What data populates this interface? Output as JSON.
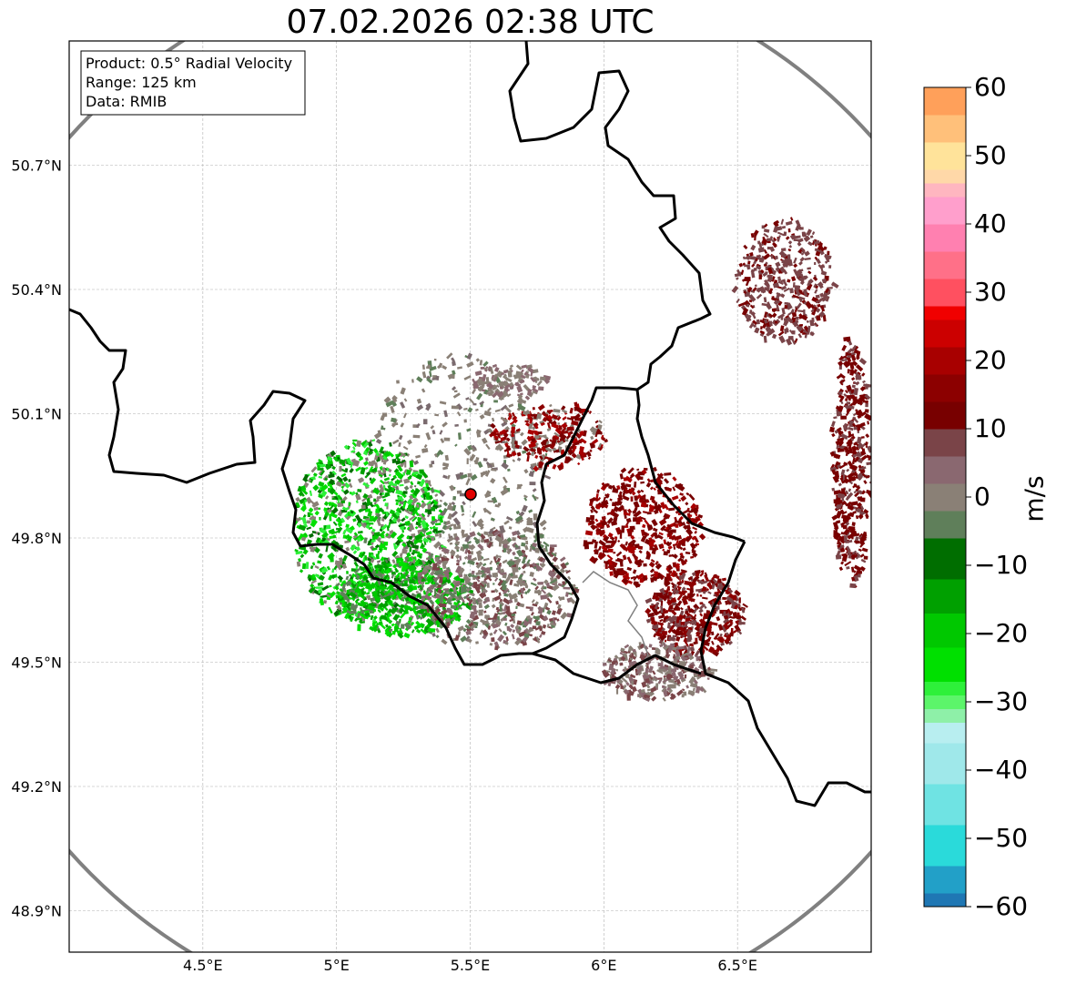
{
  "title": "07.02.2026 02:38 UTC",
  "info_box": {
    "product": "Product: 0.5° Radial Velocity",
    "range": "Range: 125 km",
    "data": "Data: RMIB"
  },
  "map_extent": {
    "lon": [
      4.0,
      7.0
    ],
    "lat": [
      48.8,
      51.0
    ]
  },
  "radar_site": {
    "lon": 5.505,
    "lat": 49.914
  },
  "lat_ticks": [
    {
      "value": 48.9,
      "label": "48.9°N"
    },
    {
      "value": 49.2,
      "label": "49.2°N"
    },
    {
      "value": 49.5,
      "label": "49.5°N"
    },
    {
      "value": 49.8,
      "label": "49.8°N"
    },
    {
      "value": 50.1,
      "label": "50.1°N"
    },
    {
      "value": 50.4,
      "label": "50.4°N"
    },
    {
      "value": 50.7,
      "label": "50.7°N"
    }
  ],
  "lon_ticks": [
    {
      "value": 4.5,
      "label": "4.5°E"
    },
    {
      "value": 5.0,
      "label": "5°E"
    },
    {
      "value": 5.5,
      "label": "5.5°E"
    },
    {
      "value": 6.0,
      "label": "6°E"
    },
    {
      "value": 6.5,
      "label": "6.5°E"
    }
  ],
  "colorbar": {
    "unit": "m/s",
    "min": -60,
    "max": 60,
    "ticks": [
      {
        "value": 60,
        "label": "60"
      },
      {
        "value": 50,
        "label": "50"
      },
      {
        "value": 40,
        "label": "40"
      },
      {
        "value": 30,
        "label": "30"
      },
      {
        "value": 20,
        "label": "20"
      },
      {
        "value": 10,
        "label": "10"
      },
      {
        "value": 0,
        "label": "0"
      },
      {
        "value": -10,
        "label": "−10"
      },
      {
        "value": -20,
        "label": "−20"
      },
      {
        "value": -30,
        "label": "−30"
      },
      {
        "value": -40,
        "label": "−40"
      },
      {
        "value": -50,
        "label": "−50"
      },
      {
        "value": -60,
        "label": "−60"
      }
    ],
    "stops": [
      {
        "from": -60,
        "to": -58,
        "color": "#1f77b4"
      },
      {
        "from": -58,
        "to": -54,
        "color": "#22a0c8"
      },
      {
        "from": -54,
        "to": -48,
        "color": "#2adada"
      },
      {
        "from": -48,
        "to": -42,
        "color": "#6fe3e3"
      },
      {
        "from": -42,
        "to": -36,
        "color": "#9fe8ea"
      },
      {
        "from": -36,
        "to": -33,
        "color": "#b8eef0"
      },
      {
        "from": -33,
        "to": -31,
        "color": "#8ef0a8"
      },
      {
        "from": -31,
        "to": -29,
        "color": "#5cf56a"
      },
      {
        "from": -29,
        "to": -27,
        "color": "#2ef03a"
      },
      {
        "from": -27,
        "to": -22,
        "color": "#00e000"
      },
      {
        "from": -22,
        "to": -17,
        "color": "#00c800"
      },
      {
        "from": -17,
        "to": -12,
        "color": "#00a000"
      },
      {
        "from": -12,
        "to": -6,
        "color": "#006e00"
      },
      {
        "from": -6,
        "to": -2,
        "color": "#5f7f5a"
      },
      {
        "from": -2,
        "to": 2,
        "color": "#8a8076"
      },
      {
        "from": 2,
        "to": 6,
        "color": "#8a6870"
      },
      {
        "from": 6,
        "to": 10,
        "color": "#7a4448"
      },
      {
        "from": 10,
        "to": 14,
        "color": "#780000"
      },
      {
        "from": 14,
        "to": 18,
        "color": "#8c0000"
      },
      {
        "from": 18,
        "to": 22,
        "color": "#a80000"
      },
      {
        "from": 22,
        "to": 26,
        "color": "#cc0000"
      },
      {
        "from": 26,
        "to": 28,
        "color": "#f00000"
      },
      {
        "from": 28,
        "to": 32,
        "color": "#ff5060"
      },
      {
        "from": 32,
        "to": 36,
        "color": "#ff7088"
      },
      {
        "from": 36,
        "to": 40,
        "color": "#ff80b0"
      },
      {
        "from": 40,
        "to": 44,
        "color": "#ff9fcc"
      },
      {
        "from": 44,
        "to": 46,
        "color": "#ffb6c0"
      },
      {
        "from": 46,
        "to": 48,
        "color": "#ffd8a8"
      },
      {
        "from": 48,
        "to": 52,
        "color": "#ffe39a"
      },
      {
        "from": 52,
        "to": 56,
        "color": "#ffc07a"
      },
      {
        "from": 56,
        "to": 60,
        "color": "#ffa05a"
      }
    ]
  },
  "colors": {
    "range_ring": "#808080",
    "border": "#000000",
    "river": "#808080",
    "radar_marker": "#e00000"
  },
  "echoes": [
    {
      "lon": 5.45,
      "lat": 49.9,
      "rlon": 0.35,
      "rlat": 0.35,
      "n": 600,
      "colors": [
        "#8a8076",
        "#8a8076",
        "#8a8076",
        "#5f7f5a",
        "#7a6a6e"
      ]
    },
    {
      "lon": 5.12,
      "lat": 49.82,
      "rlon": 0.28,
      "rlat": 0.22,
      "n": 900,
      "colors": [
        "#00a000",
        "#00c800",
        "#00e000",
        "#2ef03a",
        "#006e00",
        "#8a8076"
      ]
    },
    {
      "lon": 5.25,
      "lat": 49.66,
      "rlon": 0.25,
      "rlat": 0.09,
      "n": 500,
      "colors": [
        "#00c800",
        "#00a000",
        "#00e000",
        "#5f7f5a"
      ]
    },
    {
      "lon": 5.6,
      "lat": 49.68,
      "rlon": 0.3,
      "rlat": 0.14,
      "n": 500,
      "colors": [
        "#8a8076",
        "#8a6870",
        "#5f7f5a",
        "#7a4448"
      ]
    },
    {
      "lon": 5.8,
      "lat": 50.05,
      "rlon": 0.22,
      "rlat": 0.08,
      "n": 260,
      "colors": [
        "#a80000",
        "#780000",
        "#8c0000",
        "#8a8076"
      ]
    },
    {
      "lon": 5.65,
      "lat": 50.18,
      "rlon": 0.14,
      "rlat": 0.04,
      "n": 120,
      "colors": [
        "#8a8076",
        "#8a6870"
      ]
    },
    {
      "lon": 6.15,
      "lat": 49.83,
      "rlon": 0.22,
      "rlat": 0.14,
      "n": 450,
      "colors": [
        "#780000",
        "#8c0000",
        "#a80000",
        "#780000"
      ]
    },
    {
      "lon": 6.35,
      "lat": 49.62,
      "rlon": 0.18,
      "rlat": 0.1,
      "n": 420,
      "colors": [
        "#780000",
        "#8c0000",
        "#7a4448"
      ]
    },
    {
      "lon": 6.2,
      "lat": 49.48,
      "rlon": 0.2,
      "rlat": 0.07,
      "n": 300,
      "colors": [
        "#8a6870",
        "#7a4448",
        "#8a8076"
      ]
    },
    {
      "lon": 6.68,
      "lat": 50.42,
      "rlon": 0.18,
      "rlat": 0.15,
      "n": 420,
      "colors": [
        "#7a4448",
        "#7a4448",
        "#780000"
      ]
    },
    {
      "lon": 6.93,
      "lat": 49.98,
      "rlon": 0.07,
      "rlat": 0.3,
      "n": 420,
      "colors": [
        "#780000",
        "#780000",
        "#7a4448"
      ]
    }
  ]
}
